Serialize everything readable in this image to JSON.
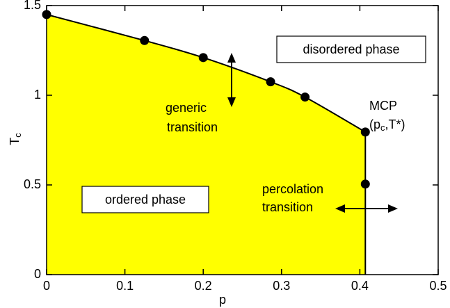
{
  "chart_data": {
    "type": "line",
    "x": [
      0,
      0.125,
      0.2,
      0.286,
      0.33,
      0.407,
      0.407
    ],
    "values": [
      1.45,
      1.305,
      1.21,
      1.075,
      0.99,
      0.795,
      0.505
    ],
    "fill_color": "#ffff00",
    "line_color": "#000000",
    "xlim": [
      0,
      0.5
    ],
    "xticks": [
      0,
      0.1,
      0.2,
      0.3,
      0.4,
      0.5
    ],
    "ylim": [
      0,
      1.5
    ],
    "yticks": [
      0,
      0.5,
      1,
      1.5
    ],
    "x_label": "p",
    "y_label": {
      "text": "T",
      "sub": "c"
    },
    "annotations": {
      "disordered": "disordered phase",
      "ordered": "ordered phase",
      "generic": [
        "generic",
        "transition"
      ],
      "percolation": [
        "percolation",
        "transition"
      ],
      "mcp": "MCP",
      "mcp_coords": [
        "(p",
        "c",
        ",T*)"
      ]
    }
  }
}
